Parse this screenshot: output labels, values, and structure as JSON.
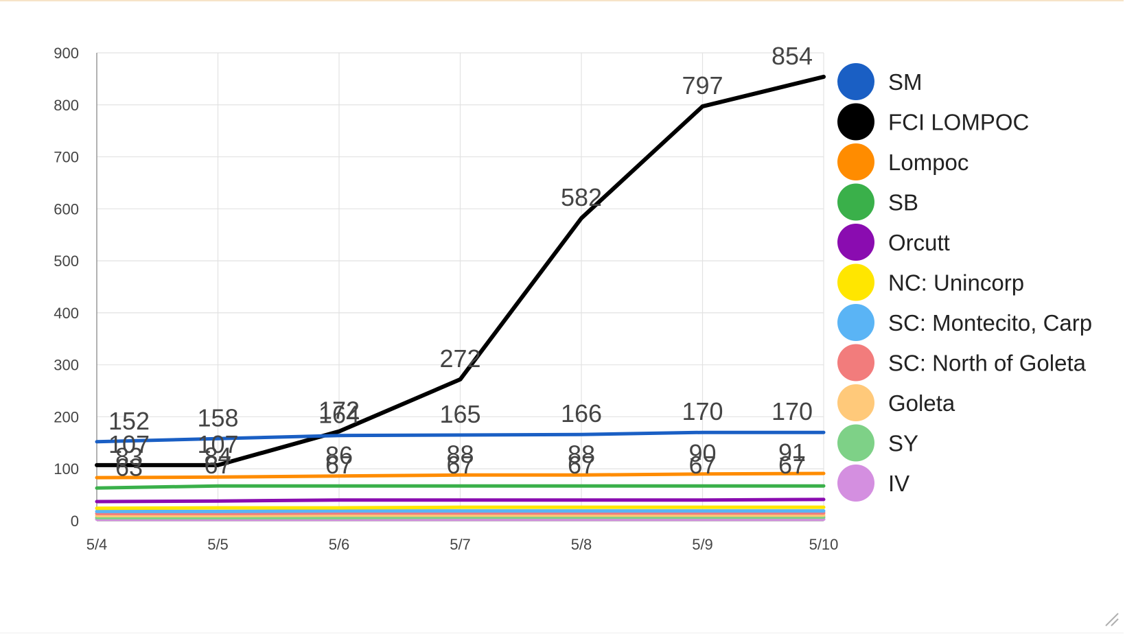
{
  "chart_data": {
    "type": "line",
    "categories": [
      "5/4",
      "5/5",
      "5/6",
      "5/7",
      "5/8",
      "5/9",
      "5/10"
    ],
    "ylim": [
      0,
      900
    ],
    "yticks": [
      0,
      100,
      200,
      300,
      400,
      500,
      600,
      700,
      800,
      900
    ],
    "grid": true,
    "legend_position": "right",
    "series": [
      {
        "name": "SM",
        "color": "#1a5fc4",
        "values": [
          152,
          158,
          164,
          165,
          166,
          170,
          170
        ],
        "labels": [
          "152",
          "158",
          "164",
          "165",
          "166",
          "170",
          "170"
        ]
      },
      {
        "name": "FCI LOMPOC",
        "color": "#000000",
        "values": [
          107,
          107,
          172,
          272,
          582,
          797,
          854
        ],
        "labels": [
          "107",
          "107",
          "172",
          "272",
          "582",
          "797",
          "854"
        ]
      },
      {
        "name": "Lompoc",
        "color": "#ff8c00",
        "values": [
          83,
          84,
          86,
          88,
          88,
          90,
          91
        ],
        "labels": [
          "83",
          "84",
          "86",
          "88",
          "88",
          "90",
          "91"
        ]
      },
      {
        "name": "SB",
        "color": "#3ab04a",
        "values": [
          63,
          67,
          67,
          67,
          67,
          67,
          67
        ],
        "labels": [
          "63",
          "67",
          "67",
          "67",
          "67",
          "67",
          "67"
        ]
      },
      {
        "name": "Orcutt",
        "color": "#8a0cb0",
        "values": [
          37,
          38,
          40,
          40,
          40,
          40,
          41
        ],
        "labels": []
      },
      {
        "name": "NC: Unincorp",
        "color": "#ffe600",
        "values": [
          24,
          25,
          25,
          26,
          26,
          26,
          26
        ],
        "labels": []
      },
      {
        "name": "SC: Montecito, Carp",
        "color": "#5ab4f5",
        "values": [
          18,
          18,
          19,
          19,
          19,
          19,
          19
        ],
        "labels": []
      },
      {
        "name": "SC: North of Goleta",
        "color": "#f27c7c",
        "values": [
          14,
          14,
          15,
          15,
          15,
          15,
          15
        ],
        "labels": []
      },
      {
        "name": "Goleta",
        "color": "#ffc97a",
        "values": [
          10,
          10,
          11,
          11,
          11,
          11,
          11
        ],
        "labels": []
      },
      {
        "name": "SY",
        "color": "#7ed187",
        "values": [
          6,
          6,
          6,
          7,
          7,
          7,
          7
        ],
        "labels": []
      },
      {
        "name": "IV",
        "color": "#d48fe0",
        "values": [
          3,
          3,
          3,
          3,
          3,
          3,
          3
        ],
        "labels": []
      }
    ]
  }
}
